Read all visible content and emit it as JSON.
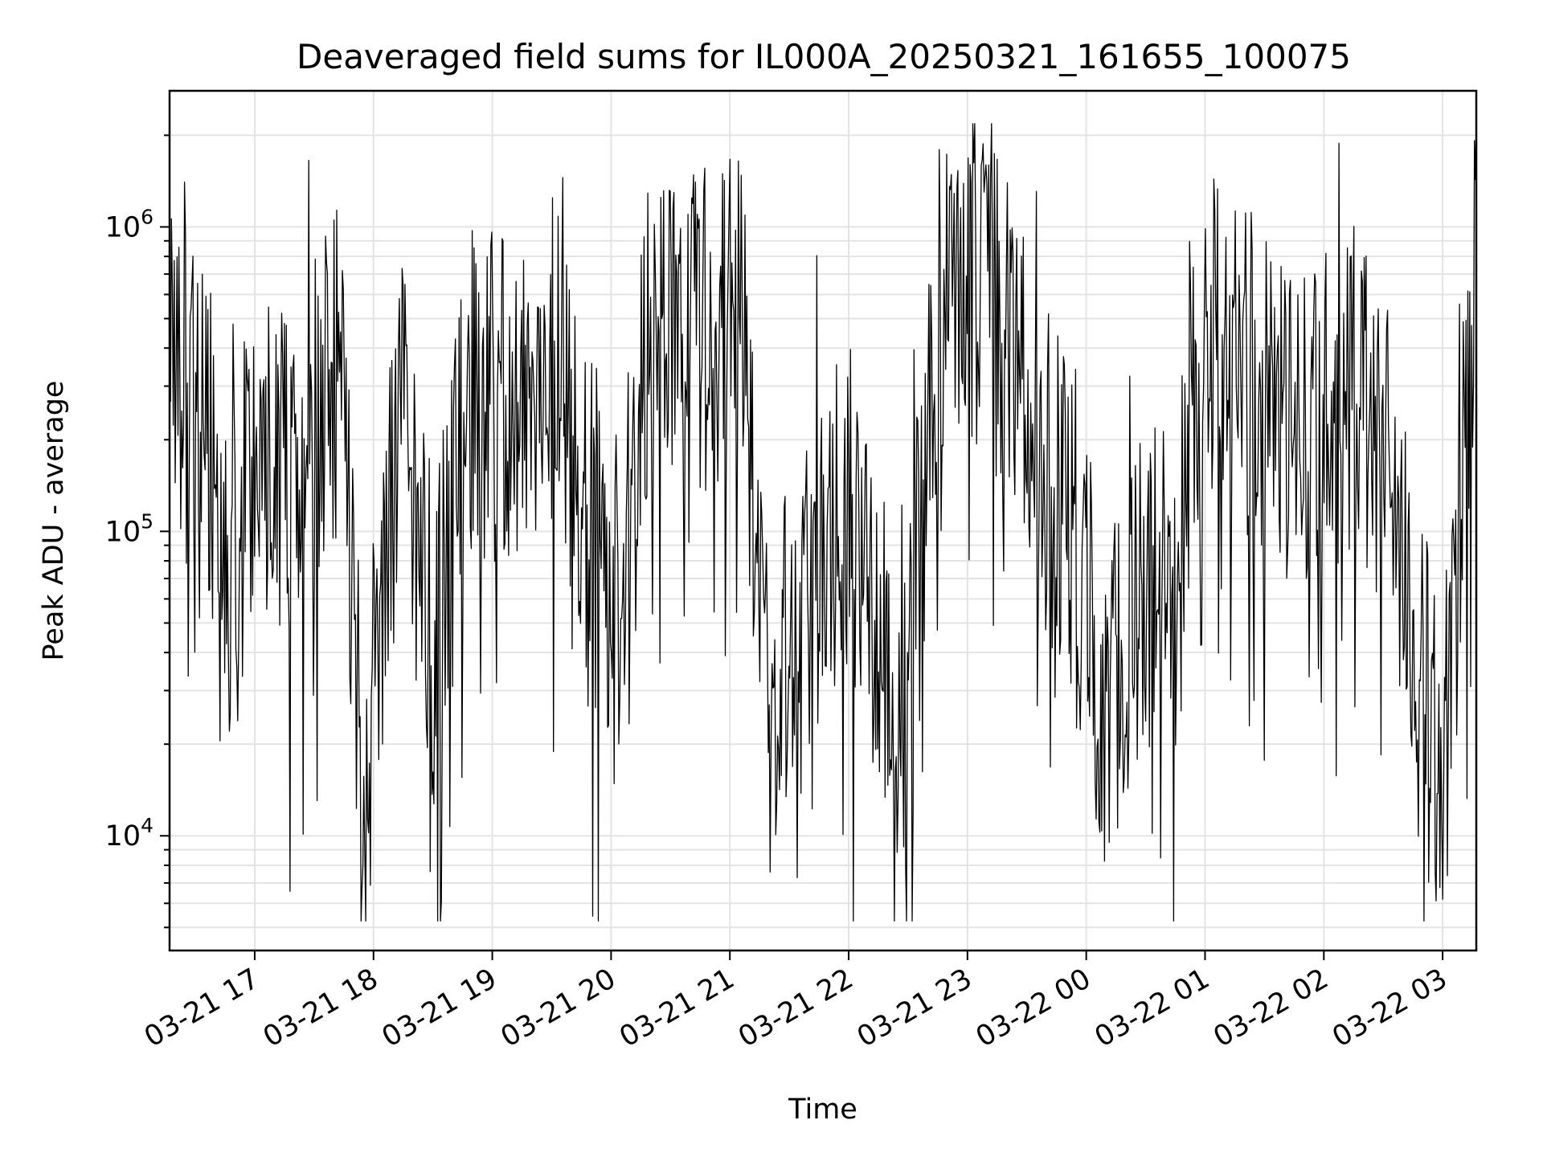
{
  "chart_data": {
    "type": "line",
    "title": "Deaveraged field sums for IL000A_20250321_161655_100075",
    "xlabel": "Time",
    "ylabel": "Peak ADU - average",
    "yscale": "log",
    "ylim": [
      4200,
      2800000
    ],
    "xlim": [
      "2025-03-21 16:17",
      "2025-03-22 03:17"
    ],
    "y_ticks": [
      {
        "base": "10",
        "exp": "4",
        "value": 10000
      },
      {
        "base": "10",
        "exp": "5",
        "value": 100000
      },
      {
        "base": "10",
        "exp": "6",
        "value": 1000000
      }
    ],
    "x_ticks": [
      {
        "label": "03-21 17",
        "value": "2025-03-21 17:00"
      },
      {
        "label": "03-21 18",
        "value": "2025-03-21 18:00"
      },
      {
        "label": "03-21 19",
        "value": "2025-03-21 19:00"
      },
      {
        "label": "03-21 20",
        "value": "2025-03-21 20:00"
      },
      {
        "label": "03-21 21",
        "value": "2025-03-21 21:00"
      },
      {
        "label": "03-21 22",
        "value": "2025-03-21 22:00"
      },
      {
        "label": "03-21 23",
        "value": "2025-03-21 23:00"
      },
      {
        "label": "03-22 00",
        "value": "2025-03-22 00:00"
      },
      {
        "label": "03-22 01",
        "value": "2025-03-22 01:00"
      },
      {
        "label": "03-22 02",
        "value": "2025-03-22 02:00"
      },
      {
        "label": "03-22 03",
        "value": "2025-03-22 03:00"
      }
    ],
    "grid": true,
    "line_color": "#000000",
    "series": [
      {
        "x": [
          "2025-03-21 16:17",
          "2025-03-21 16:35",
          "2025-03-21 16:45",
          "2025-03-21 17:00",
          "2025-03-21 17:20",
          "2025-03-21 17:43",
          "2025-03-21 17:55",
          "2025-03-21 18:15",
          "2025-03-21 18:30",
          "2025-03-21 18:50",
          "2025-03-21 19:10",
          "2025-03-21 19:30",
          "2025-03-21 19:50",
          "2025-03-21 20:05",
          "2025-03-21 20:20",
          "2025-03-21 20:40",
          "2025-03-21 20:55",
          "2025-03-21 21:05",
          "2025-03-21 21:20",
          "2025-03-21 21:40",
          "2025-03-21 22:00",
          "2025-03-21 22:15",
          "2025-03-21 22:30",
          "2025-03-21 22:45",
          "2025-03-21 23:00",
          "2025-03-21 23:20",
          "2025-03-21 23:40",
          "2025-03-21 23:55",
          "2025-03-22 00:10",
          "2025-03-22 00:25",
          "2025-03-22 00:45",
          "2025-03-22 01:00",
          "2025-03-22 01:20",
          "2025-03-22 01:40",
          "2025-03-22 02:00",
          "2025-03-22 02:20",
          "2025-03-22 02:35",
          "2025-03-22 02:50",
          "2025-03-22 03:00",
          "2025-03-22 03:17"
        ],
        "y": [
          500000,
          300000,
          55000,
          200000,
          150000,
          350000,
          15000,
          250000,
          40000,
          300000,
          250000,
          400000,
          100000,
          60000,
          600000,
          500000,
          400000,
          600000,
          30000,
          80000,
          120000,
          40000,
          25000,
          500000,
          700000,
          450000,
          150000,
          100000,
          25000,
          60000,
          70000,
          500000,
          350000,
          200000,
          250000,
          300000,
          140000,
          30000,
          15000,
          700000
        ]
      }
    ]
  }
}
